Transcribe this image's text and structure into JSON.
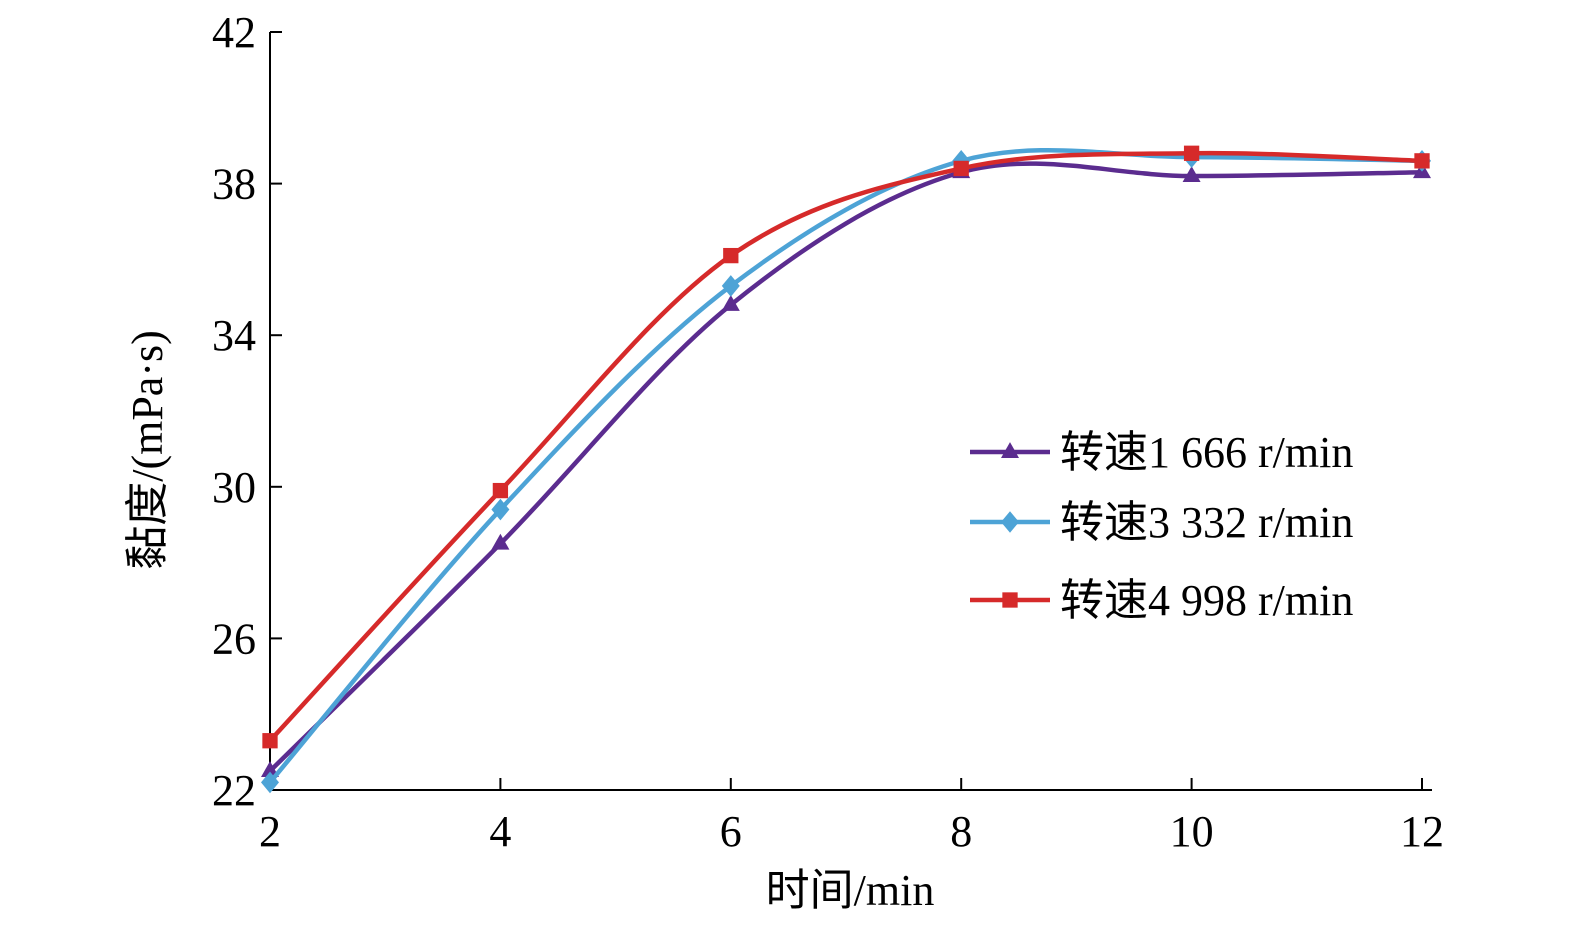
{
  "chart_data": {
    "type": "line",
    "title": "",
    "xlabel": "时间/min",
    "ylabel": "黏度/(mPa·s)",
    "xlim": [
      2,
      12
    ],
    "ylim": [
      22,
      42
    ],
    "xticks": [
      2,
      4,
      6,
      8,
      10,
      12
    ],
    "yticks": [
      22,
      26,
      30,
      34,
      38,
      42
    ],
    "grid": false,
    "legend_position": "right-middle",
    "x": [
      2,
      4,
      6,
      8,
      10,
      12
    ],
    "series": [
      {
        "name": "转速1 666 r/min",
        "color": "#5b2c8f",
        "marker": "triangle",
        "values": [
          22.5,
          28.5,
          34.8,
          38.3,
          38.2,
          38.3
        ]
      },
      {
        "name": "转速3 332 r/min",
        "color": "#4da3d6",
        "marker": "diamond",
        "values": [
          22.2,
          29.4,
          35.3,
          38.6,
          38.7,
          38.6
        ]
      },
      {
        "name": "转速4 998 r/min",
        "color": "#d62a2a",
        "marker": "square",
        "values": [
          23.3,
          29.9,
          36.1,
          38.4,
          38.8,
          38.6
        ]
      }
    ]
  }
}
